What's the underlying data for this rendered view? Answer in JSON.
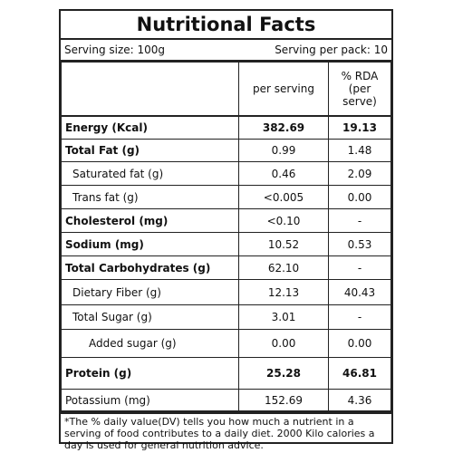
{
  "header": {
    "title": "Nutritional Facts",
    "serving_size": "Serving size: 100g",
    "serving_per_pack": "Serving per pack: 10"
  },
  "table": {
    "columns": [
      "per serving",
      "% RDA\n(per serve)"
    ],
    "rows": [
      [
        "Energy (Kcal)",
        "382.69",
        "19.13"
      ],
      [
        "Total Fat (g)",
        "0.99",
        "1.48"
      ],
      [
        "Saturated fat (g)",
        "0.46",
        "2.09"
      ],
      [
        "Trans fat (g)",
        "<0.005",
        "0.00"
      ],
      [
        "Cholesterol (mg)",
        "<0.10",
        "-"
      ],
      [
        "Sodium (mg)",
        "10.52",
        "0.53"
      ],
      [
        "Total Carbohydrates (g)",
        "62.10",
        "-"
      ],
      [
        "Dietary Fiber (g)",
        "12.13",
        "40.43"
      ],
      [
        "Total Sugar (g)",
        "3.01",
        "-"
      ],
      [
        "Added sugar (g)",
        "0.00",
        "0.00"
      ],
      [
        "Protein (g)",
        "25.28",
        "46.81"
      ],
      [
        "Potassium (mg)",
        "152.69",
        "4.36"
      ]
    ]
  },
  "footnote": "*The % daily value(DV) tells you how much a nutrient in a serving of food contributes to a daily diet. 2000 Kilo calories a day is used for general nutrition advice."
}
